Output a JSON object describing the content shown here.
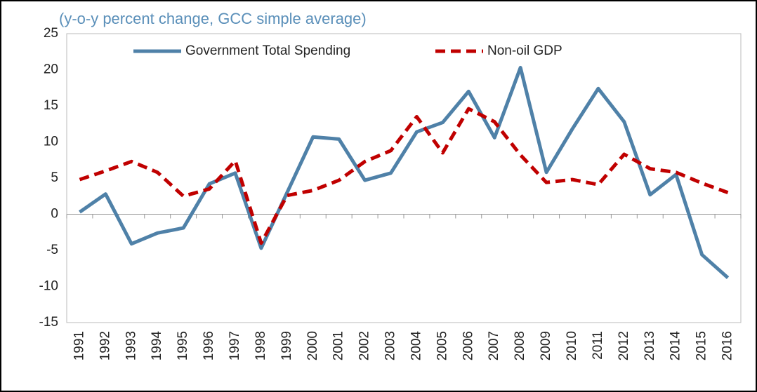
{
  "chart_data": {
    "type": "line",
    "title": "(y-o-y percent change, GCC simple average)",
    "categories": [
      "1991",
      "1992",
      "1993",
      "1994",
      "1995",
      "1996",
      "1997",
      "1998",
      "1999",
      "2000",
      "2001",
      "2002",
      "2003",
      "2004",
      "2005",
      "2006",
      "2007",
      "2008",
      "2009",
      "2010",
      "2011",
      "2012",
      "2013",
      "2014",
      "2015",
      "2016"
    ],
    "series": [
      {
        "name": "Government Total Spending",
        "color": "#4f81a8",
        "dash": false,
        "values": [
          0.3,
          2.8,
          -4.1,
          -2.6,
          -1.9,
          4.2,
          5.7,
          -4.7,
          3.0,
          10.7,
          10.4,
          4.7,
          5.7,
          11.4,
          12.7,
          17.0,
          10.6,
          20.3,
          5.8,
          11.8,
          17.4,
          12.8,
          2.7,
          5.5,
          -5.6,
          -8.8
        ]
      },
      {
        "name": "Non-oil GDP",
        "color": "#c00000",
        "dash": true,
        "values": [
          4.8,
          6.0,
          7.3,
          5.8,
          2.5,
          3.5,
          7.4,
          -4.0,
          2.6,
          3.3,
          4.7,
          7.3,
          8.8,
          13.5,
          8.5,
          14.6,
          12.8,
          8.2,
          4.4,
          4.8,
          4.1,
          8.3,
          6.3,
          5.8,
          4.3,
          3.0
        ]
      }
    ],
    "ylim": [
      -15,
      25
    ],
    "yticks": [
      -15,
      -10,
      -5,
      0,
      5,
      10,
      15,
      20,
      25
    ],
    "grid": false
  }
}
